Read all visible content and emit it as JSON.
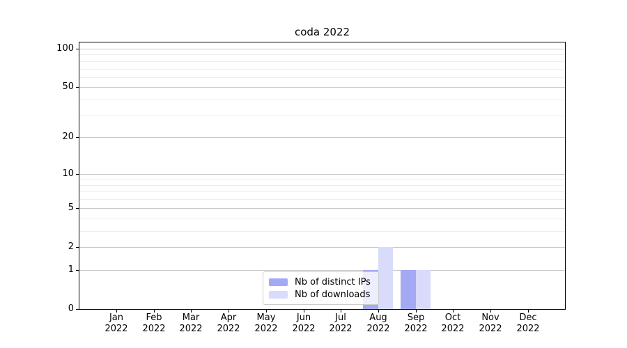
{
  "chart_data": {
    "type": "bar",
    "title": "coda 2022",
    "year_line": "2022",
    "categories": [
      "Jan",
      "Feb",
      "Mar",
      "Apr",
      "May",
      "Jun",
      "Jul",
      "Aug",
      "Sep",
      "Oct",
      "Nov",
      "Dec"
    ],
    "series": [
      {
        "name": "Nb of distinct IPs",
        "color": "#a4a9f3",
        "values": [
          0,
          0,
          0,
          0,
          0,
          0,
          0,
          1,
          1,
          0,
          0,
          0
        ]
      },
      {
        "name": "Nb of downloads",
        "color": "#d8dbfb",
        "values": [
          0,
          0,
          0,
          0,
          0,
          0,
          0,
          2,
          1,
          0,
          0,
          0
        ]
      }
    ],
    "yscale": "log1p",
    "ylim": [
      0,
      111.8
    ],
    "y_ticks": [
      0,
      1,
      2,
      5,
      10,
      20,
      50,
      100
    ],
    "y_minor_ticks": [
      3,
      4,
      6,
      7,
      8,
      9,
      30,
      40,
      60,
      70,
      80,
      90
    ],
    "grid": "horizontal-major-and-minor",
    "legend_position": "lower center",
    "xlabel": "",
    "ylabel": ""
  },
  "colors": {
    "major_grid": "#c9c9c9",
    "minor_grid": "#ededed",
    "axis": "#000000",
    "text": "#000000",
    "legend_border": "#cccccc"
  }
}
